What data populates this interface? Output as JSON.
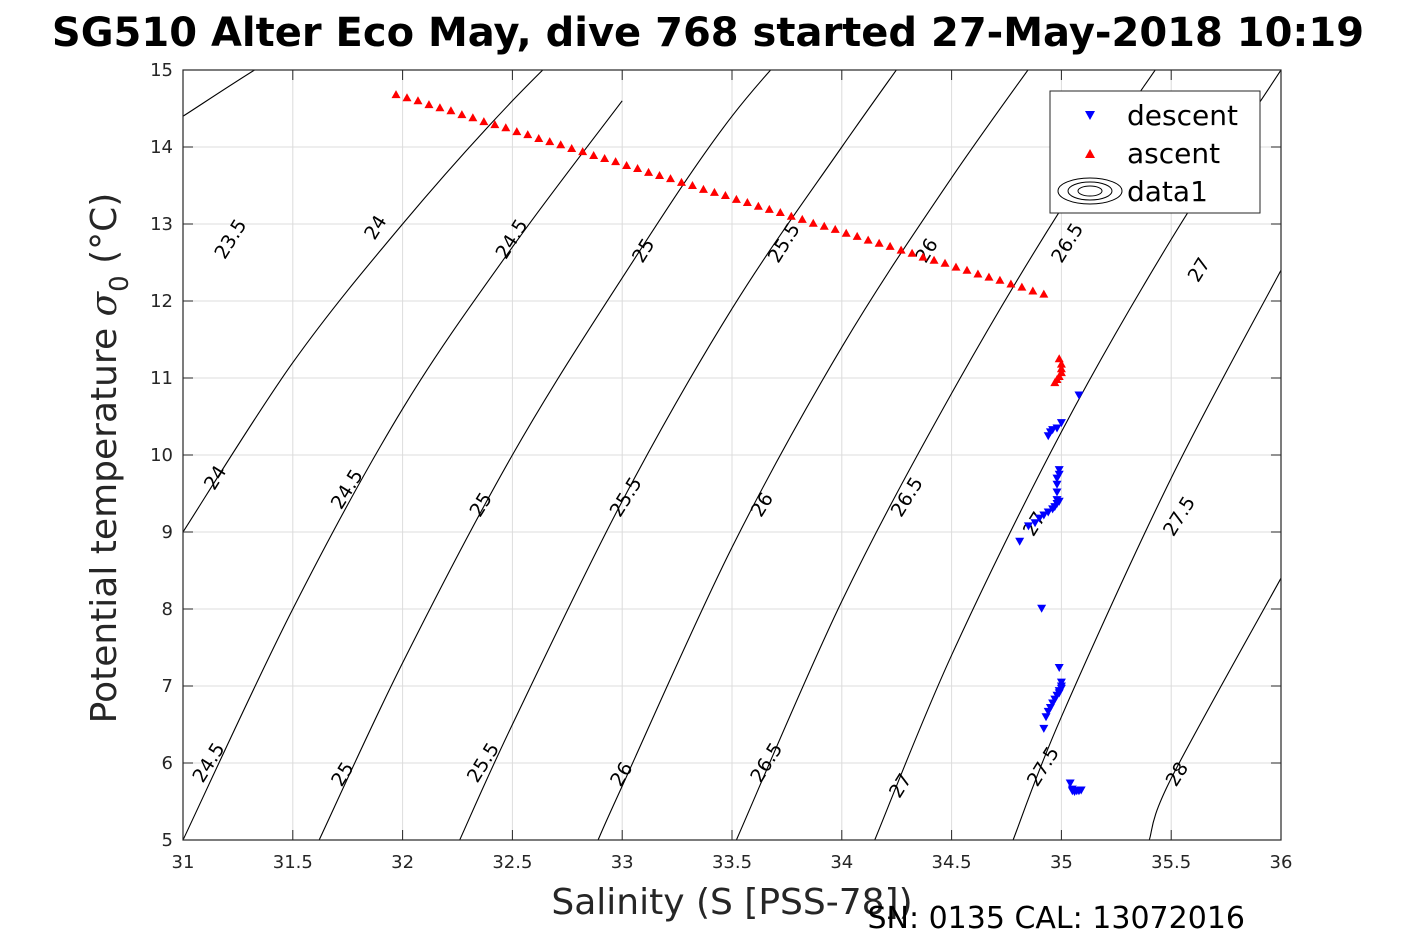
{
  "chart_data": {
    "type": "scatter",
    "title": "SG510 Alter Eco May, dive 768 started 27-May-2018 10:19",
    "xlabel": "Salinity (S [PSS-78])",
    "ylabel_main": "Potential temperature ",
    "ylabel_sigma": "σ",
    "ylabel_sub": "0",
    "ylabel_unit": " (°C)",
    "footer": "SN: 0135  CAL: 13072016",
    "xlim": [
      31,
      36
    ],
    "ylim": [
      5,
      15
    ],
    "xticks": [
      31,
      31.5,
      32,
      32.5,
      33,
      33.5,
      34,
      34.5,
      35,
      35.5,
      36
    ],
    "xtick_labels": [
      "31",
      "31.5",
      "32",
      "32.5",
      "33",
      "33.5",
      "34",
      "34.5",
      "35",
      "35.5",
      "36"
    ],
    "yticks": [
      5,
      6,
      7,
      8,
      9,
      10,
      11,
      12,
      13,
      14,
      15
    ],
    "ytick_labels": [
      "5",
      "6",
      "7",
      "8",
      "9",
      "10",
      "11",
      "12",
      "13",
      "14",
      "15"
    ],
    "grid": true,
    "legend_position": "top-right",
    "series": [
      {
        "name": "descent",
        "marker": "triangle-down",
        "color": "#0000ff",
        "x": [
          35.08,
          35.0,
          34.98,
          34.96,
          34.95,
          34.94,
          34.99,
          34.99,
          34.98,
          34.98,
          34.98,
          34.98,
          34.99,
          34.98,
          34.97,
          34.96,
          34.94,
          34.92,
          34.9,
          34.88,
          34.85,
          34.81,
          34.91,
          34.99,
          35.0,
          35.0,
          35.0,
          34.99,
          34.99,
          34.98,
          34.97,
          34.96,
          34.95,
          34.94,
          34.93,
          34.92,
          35.04,
          35.05,
          35.06,
          35.07,
          35.08,
          35.09,
          35.05,
          35.06
        ],
        "y": [
          10.78,
          10.42,
          10.35,
          10.33,
          10.3,
          10.25,
          9.81,
          9.75,
          9.7,
          9.62,
          9.52,
          9.42,
          9.4,
          9.37,
          9.33,
          9.3,
          9.26,
          9.22,
          9.18,
          9.12,
          9.08,
          8.88,
          8.01,
          7.24,
          7.05,
          7.0,
          6.97,
          6.94,
          6.91,
          6.88,
          6.83,
          6.78,
          6.72,
          6.67,
          6.6,
          6.45,
          5.74,
          5.64,
          5.64,
          5.64,
          5.64,
          5.65,
          5.66,
          5.63
        ]
      },
      {
        "name": "ascent",
        "marker": "triangle-up",
        "color": "#ff0000",
        "x": [
          31.97,
          32.02,
          32.07,
          32.12,
          32.17,
          32.22,
          32.27,
          32.32,
          32.37,
          32.42,
          32.47,
          32.52,
          32.57,
          32.62,
          32.67,
          32.72,
          32.77,
          32.82,
          32.87,
          32.92,
          32.97,
          33.02,
          33.07,
          33.12,
          33.17,
          33.22,
          33.27,
          33.32,
          33.37,
          33.42,
          33.47,
          33.52,
          33.57,
          33.62,
          33.67,
          33.72,
          33.77,
          33.82,
          33.87,
          33.92,
          33.97,
          34.02,
          34.07,
          34.12,
          34.17,
          34.22,
          34.27,
          34.32,
          34.37,
          34.42,
          34.47,
          34.52,
          34.57,
          34.62,
          34.67,
          34.72,
          34.77,
          34.82,
          34.87,
          34.92,
          34.99,
          35.0,
          35.0,
          35.0,
          34.99,
          34.98,
          34.97
        ],
        "y": [
          14.68,
          14.64,
          14.6,
          14.55,
          14.51,
          14.47,
          14.42,
          14.38,
          14.33,
          14.29,
          14.25,
          14.2,
          14.16,
          14.11,
          14.07,
          14.03,
          13.98,
          13.94,
          13.89,
          13.85,
          13.81,
          13.76,
          13.72,
          13.67,
          13.63,
          13.59,
          13.54,
          13.5,
          13.45,
          13.41,
          13.37,
          13.32,
          13.28,
          13.23,
          13.19,
          13.15,
          13.1,
          13.06,
          13.01,
          12.97,
          12.93,
          12.88,
          12.84,
          12.79,
          12.75,
          12.71,
          12.66,
          12.62,
          12.57,
          12.53,
          12.49,
          12.44,
          12.4,
          12.35,
          12.31,
          12.27,
          12.22,
          12.18,
          12.13,
          12.09,
          11.25,
          11.18,
          11.12,
          11.07,
          11.02,
          10.98,
          10.94
        ]
      }
    ],
    "contours": {
      "name": "data1",
      "color": "#000000",
      "levels": [
        {
          "label": "23.5",
          "x": [
            31.0,
            31.5,
            32.0
          ],
          "y": [
            14.4,
            15.3,
            16.0
          ]
        },
        {
          "label": "24",
          "x": [
            31.0,
            31.5,
            32.0,
            32.5,
            33.0
          ],
          "y": [
            9.0,
            11.2,
            13.0,
            14.6,
            16.0
          ]
        },
        {
          "label": "24.5",
          "x": [
            31.0,
            31.5,
            32.0,
            32.5,
            33.0
          ],
          "y": [
            5.0,
            8.0,
            10.6,
            12.7,
            14.6
          ]
        },
        {
          "label": "25",
          "x": [
            31.62,
            32.0,
            32.5,
            33.0,
            33.5,
            34.0
          ],
          "y": [
            5.0,
            7.3,
            10.0,
            12.3,
            14.4,
            16.0
          ]
        },
        {
          "label": "25.5",
          "x": [
            32.26,
            32.5,
            33.0,
            33.5,
            34.0,
            34.5
          ],
          "y": [
            5.0,
            6.5,
            9.4,
            11.9,
            14.0,
            16.0
          ]
        },
        {
          "label": "26",
          "x": [
            32.89,
            33.0,
            33.5,
            34.0,
            34.5,
            35.0
          ],
          "y": [
            5.0,
            5.7,
            8.8,
            11.4,
            13.6,
            15.6
          ]
        },
        {
          "label": "26.5",
          "x": [
            33.52,
            34.0,
            34.5,
            35.0,
            35.5
          ],
          "y": [
            5.0,
            8.1,
            10.8,
            13.2,
            15.3
          ]
        },
        {
          "label": "27",
          "x": [
            34.15,
            34.5,
            35.0,
            35.5,
            36.0
          ],
          "y": [
            5.0,
            7.4,
            10.3,
            12.8,
            15.0
          ]
        },
        {
          "label": "27.5",
          "x": [
            34.78,
            35.0,
            35.5,
            36.0
          ],
          "y": [
            5.0,
            6.6,
            9.7,
            12.4
          ]
        },
        {
          "label": "28",
          "x": [
            35.4,
            35.5,
            36.0
          ],
          "y": [
            5.0,
            5.8,
            8.4
          ]
        }
      ],
      "labels": [
        {
          "text": "23.5",
          "x": 31.22,
          "y": 12.8
        },
        {
          "text": "24",
          "x": 31.88,
          "y": 12.95
        },
        {
          "text": "24.5",
          "x": 32.5,
          "y": 12.8
        },
        {
          "text": "25",
          "x": 33.1,
          "y": 12.65
        },
        {
          "text": "25.5",
          "x": 33.74,
          "y": 12.75
        },
        {
          "text": "26",
          "x": 34.39,
          "y": 12.65
        },
        {
          "text": "26.5",
          "x": 35.03,
          "y": 12.75
        },
        {
          "text": "27",
          "x": 35.63,
          "y": 12.4
        },
        {
          "text": "24",
          "x": 31.15,
          "y": 9.7
        },
        {
          "text": "24.5",
          "x": 31.75,
          "y": 9.55
        },
        {
          "text": "25",
          "x": 32.36,
          "y": 9.35
        },
        {
          "text": "25.5",
          "x": 33.02,
          "y": 9.45
        },
        {
          "text": "26",
          "x": 33.64,
          "y": 9.35
        },
        {
          "text": "26.5",
          "x": 34.3,
          "y": 9.45
        },
        {
          "text": "27",
          "x": 34.88,
          "y": 9.1
        },
        {
          "text": "27.5",
          "x": 35.54,
          "y": 9.2
        },
        {
          "text": "24.5",
          "x": 31.12,
          "y": 6.0
        },
        {
          "text": "25",
          "x": 31.73,
          "y": 5.85
        },
        {
          "text": "25.5",
          "x": 32.37,
          "y": 6.0
        },
        {
          "text": "26",
          "x": 33.0,
          "y": 5.85
        },
        {
          "text": "26.5",
          "x": 33.66,
          "y": 6.0
        },
        {
          "text": "27",
          "x": 34.27,
          "y": 5.7
        },
        {
          "text": "27.5",
          "x": 34.92,
          "y": 5.95
        },
        {
          "text": "28",
          "x": 35.53,
          "y": 5.85
        }
      ]
    }
  }
}
